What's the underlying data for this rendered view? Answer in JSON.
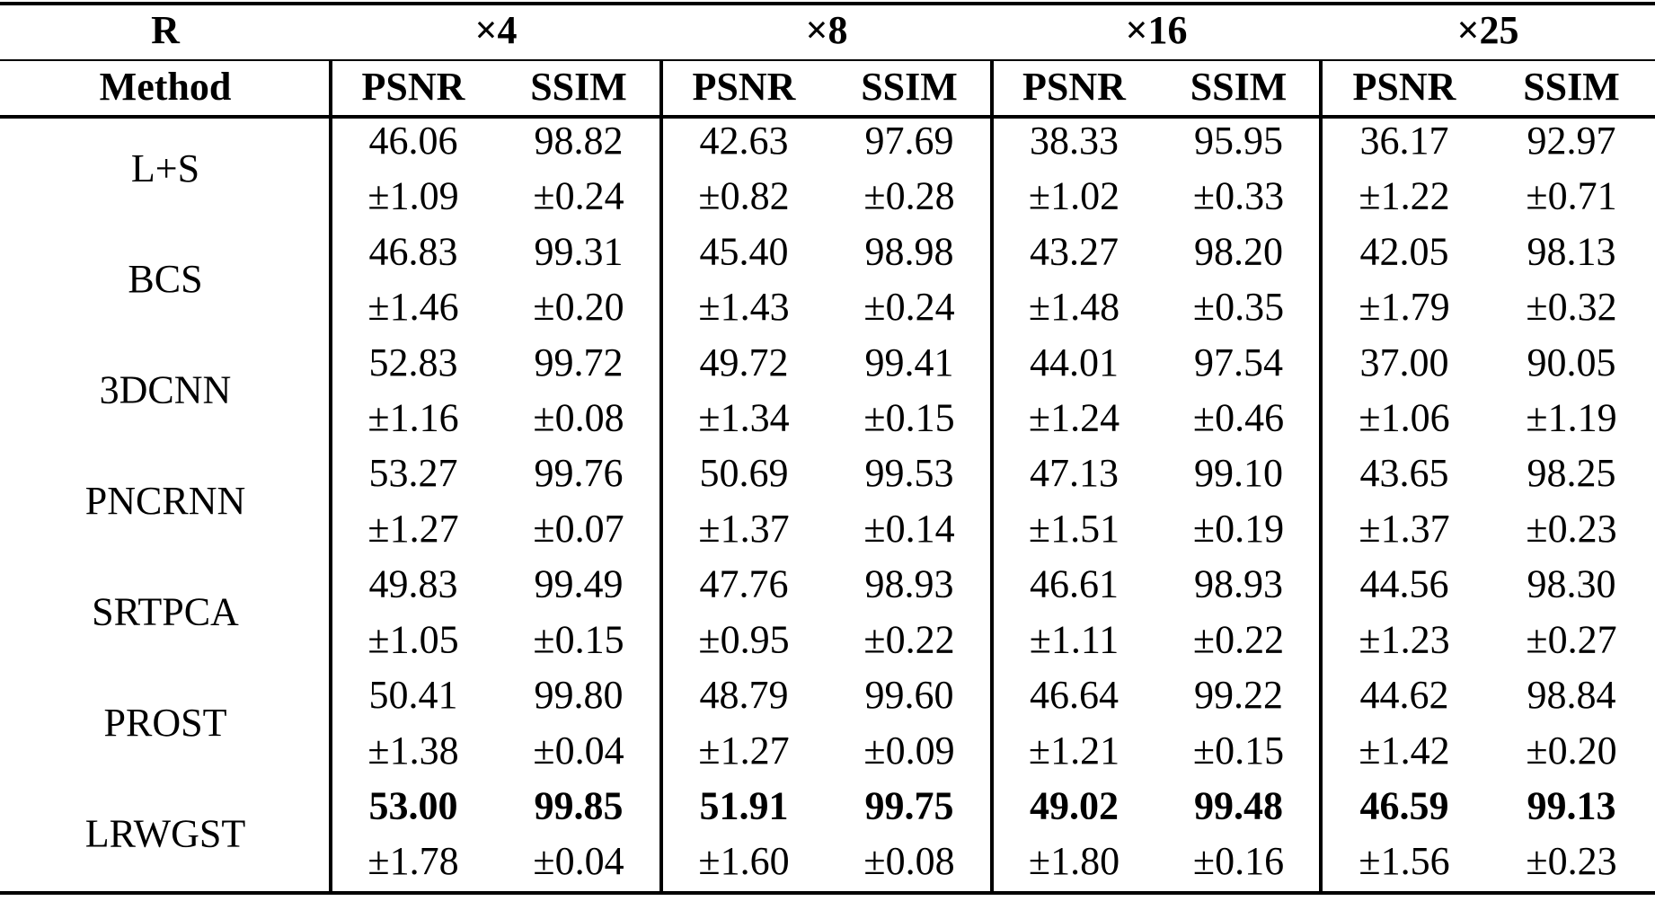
{
  "header": {
    "r_label": "R",
    "groups": [
      "×4",
      "×8",
      "×16",
      "×25"
    ],
    "method_label": "Method",
    "metrics": [
      "PSNR",
      "SSIM",
      "PSNR",
      "SSIM",
      "PSNR",
      "SSIM",
      "PSNR",
      "SSIM"
    ]
  },
  "rows": [
    {
      "method": "L+S",
      "mean": [
        "46.06",
        "98.82",
        "42.63",
        "97.69",
        "38.33",
        "95.95",
        "36.17",
        "92.97"
      ],
      "std": [
        "±1.09",
        "±0.24",
        "±0.82",
        "±0.28",
        "±1.02",
        "±0.33",
        "±1.22",
        "±0.71"
      ]
    },
    {
      "method": "BCS",
      "mean": [
        "46.83",
        "99.31",
        "45.40",
        "98.98",
        "43.27",
        "98.20",
        "42.05",
        "98.13"
      ],
      "std": [
        "±1.46",
        "±0.20",
        "±1.43",
        "±0.24",
        "±1.48",
        "±0.35",
        "±1.79",
        "±0.32"
      ]
    },
    {
      "method": "3DCNN",
      "mean": [
        "52.83",
        "99.72",
        "49.72",
        "99.41",
        "44.01",
        "97.54",
        "37.00",
        "90.05"
      ],
      "std": [
        "±1.16",
        "±0.08",
        "±1.34",
        "±0.15",
        "±1.24",
        "±0.46",
        "±1.06",
        "±1.19"
      ]
    },
    {
      "method": "PNCRNN",
      "mean": [
        "53.27",
        "99.76",
        "50.69",
        "99.53",
        "47.13",
        "99.10",
        "43.65",
        "98.25"
      ],
      "std": [
        "±1.27",
        "±0.07",
        "±1.37",
        "±0.14",
        "±1.51",
        "±0.19",
        "±1.37",
        "±0.23"
      ]
    },
    {
      "method": "SRTPCA",
      "mean": [
        "49.83",
        "99.49",
        "47.76",
        "98.93",
        "46.61",
        "98.93",
        "44.56",
        "98.30"
      ],
      "std": [
        "±1.05",
        "±0.15",
        "±0.95",
        "±0.22",
        "±1.11",
        "±0.22",
        "±1.23",
        "±0.27"
      ]
    },
    {
      "method": "PROST",
      "mean": [
        "50.41",
        "99.80",
        "48.79",
        "99.60",
        "46.64",
        "99.22",
        "44.62",
        "98.84"
      ],
      "std": [
        "±1.38",
        "±0.04",
        "±1.27",
        "±0.09",
        "±1.21",
        "±0.15",
        "±1.42",
        "±0.20"
      ]
    },
    {
      "method": "LRWGST",
      "mean": [
        "53.00",
        "99.85",
        "51.91",
        "99.75",
        "49.02",
        "99.48",
        "46.59",
        "99.13"
      ],
      "std": [
        "±1.78",
        "±0.04",
        "±1.60",
        "±0.08",
        "±1.80",
        "±0.16",
        "±1.56",
        "±0.23"
      ]
    }
  ]
}
